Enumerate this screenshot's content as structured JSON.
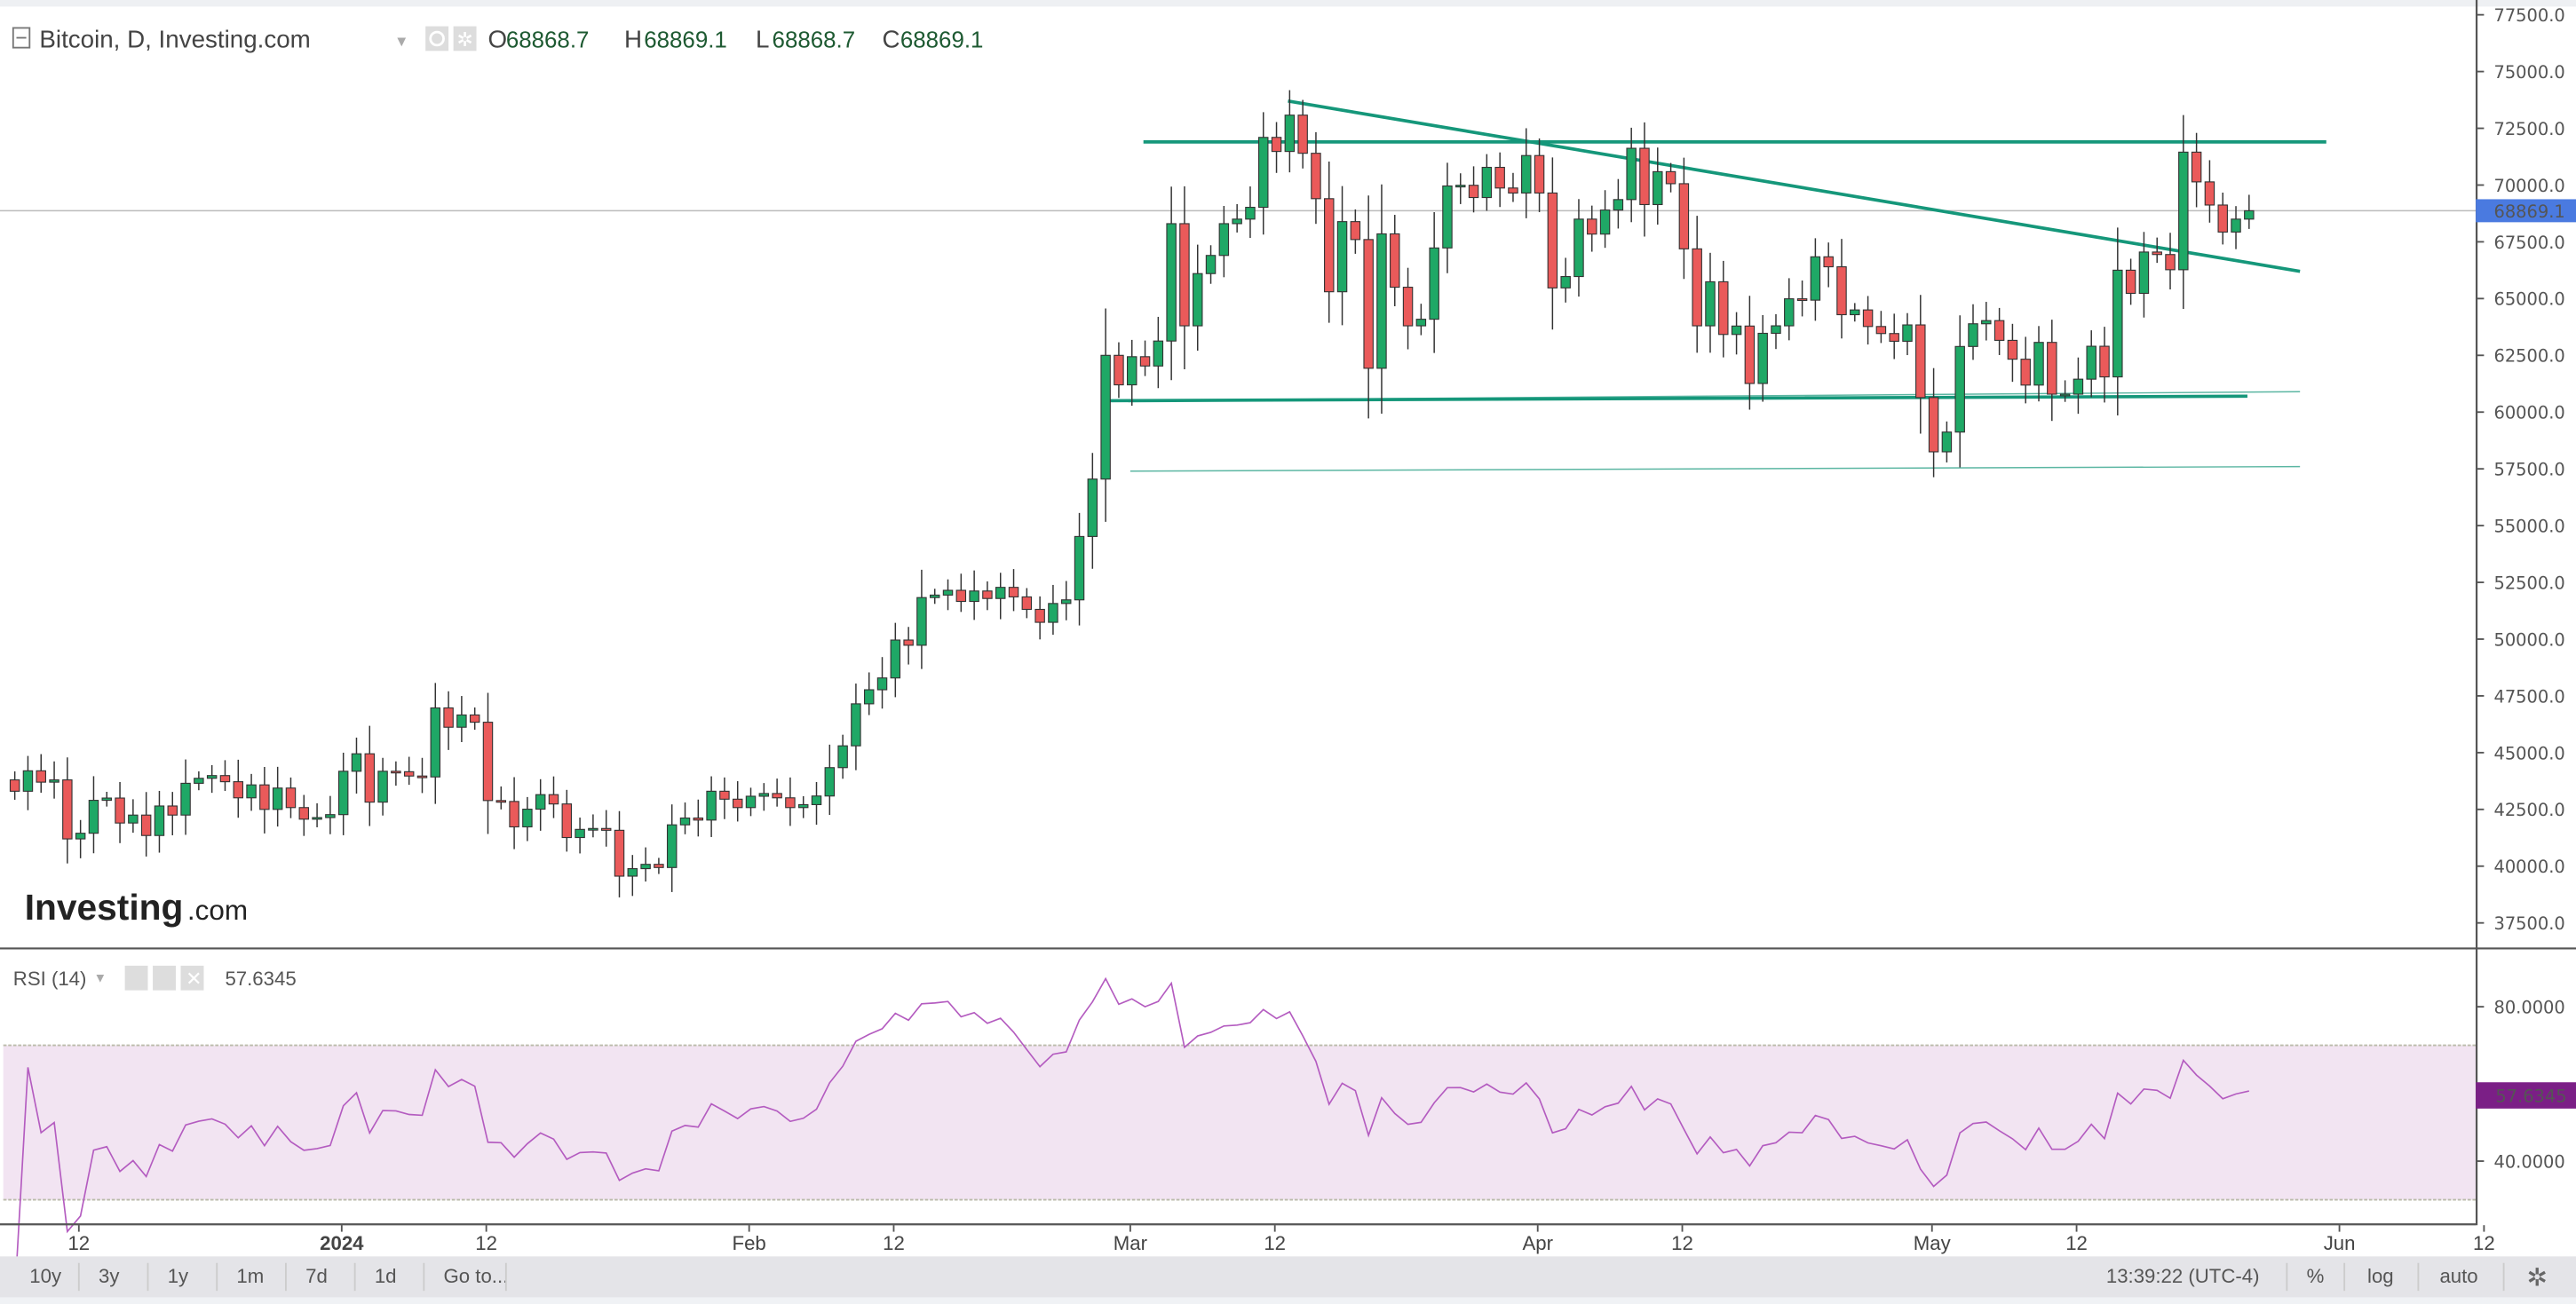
{
  "header": {
    "title": "Bitcoin, D, Investing.com",
    "o_label": "O",
    "o": "68868.7",
    "h_label": "H",
    "h": "68869.1",
    "l_label": "L",
    "l": "68868.7",
    "c_label": "C",
    "c": "68869.1"
  },
  "rsi": {
    "label": "RSI (14)",
    "value": "57.6345",
    "color": "#7b1f86"
  },
  "logo": {
    "text_main": "Investing",
    "text_suffix": ".com"
  },
  "toolbar": {
    "ranges": [
      "10y",
      "3y",
      "1y",
      "1m",
      "7d",
      "1d",
      "Go to..."
    ],
    "time": "13:39:22 (UTC-4)",
    "percent": "%",
    "log": "log",
    "auto": "auto"
  },
  "colors": {
    "up": "#1fa866",
    "down": "#ea5a5a",
    "trend": "#15977a",
    "price_tag": "#4a7ae0",
    "rsi_band": "#f2e4f2"
  },
  "chart_data": {
    "type": "candlestick",
    "title": "Bitcoin, D, Investing.com",
    "first_date": "2023-12-07",
    "first_open": 43800,
    "closes": [
      43300,
      44200,
      43700,
      43800,
      41200,
      41450,
      42900,
      43000,
      41900,
      42250,
      41350,
      42650,
      42250,
      43650,
      43870,
      43990,
      43720,
      43010,
      43580,
      42500,
      43440,
      42580,
      42070,
      42140,
      42270,
      44180,
      44950,
      42820,
      44180,
      44160,
      43970,
      43930,
      46970,
      46120,
      46660,
      46340,
      42890,
      42850,
      41730,
      42510,
      43150,
      42740,
      41260,
      41620,
      41660,
      41580,
      39560,
      39890,
      40080,
      39940,
      41820,
      42120,
      42030,
      43300,
      42950,
      42580,
      43080,
      43200,
      43010,
      42580,
      42710,
      43090,
      44340,
      45300,
      47150,
      47770,
      48290,
      49960,
      49730,
      51830,
      51940,
      52150,
      51660,
      52120,
      51790,
      52280,
      51860,
      51310,
      50740,
      51570,
      51730,
      54520,
      57050,
      62500,
      61200,
      62440,
      62030,
      63130,
      68300,
      63800,
      66100,
      66900,
      68300,
      68500,
      69020,
      72100,
      71480,
      73080,
      71400,
      69400,
      65300,
      68390,
      67600,
      61930,
      67850,
      65500,
      63800,
      64090,
      67230,
      69960,
      69990,
      69450,
      70780,
      69870,
      69650,
      71300,
      69650,
      65470,
      65970,
      68500,
      67840,
      68900,
      69360,
      71620,
      69140,
      70590,
      70060,
      67190,
      63800,
      65740,
      63420,
      63790,
      61260,
      63470,
      63800,
      64990,
      64930,
      66840,
      66400,
      64290,
      64500,
      63770,
      63460,
      63120,
      63840,
      60640,
      58250,
      59120,
      62890,
      63890,
      64030,
      63160,
      62330,
      61190,
      63070,
      60790,
      60790,
      61450,
      62900,
      61550,
      66250,
      65230,
      67050,
      66940,
      66270,
      71450,
      70140,
      69120,
      67930,
      68500,
      68869.1
    ],
    "last_price": "68869.1",
    "y_ticks": [
      "77500.0",
      "75000.0",
      "72500.0",
      "70000.0",
      "67500.0",
      "65000.0",
      "62500.0",
      "60000.0",
      "57500.0",
      "55000.0",
      "52500.0",
      "50000.0",
      "47500.0",
      "45000.0",
      "42500.0",
      "40000.0",
      "37500.0"
    ],
    "y_range": [
      37500,
      77500
    ],
    "x_ticks": [
      "12",
      "2024",
      "12",
      "Feb",
      "12",
      "Mar",
      "12",
      "Apr",
      "12",
      "May",
      "12",
      "Jun",
      "12"
    ],
    "x_tick_dates": [
      "2023-12-12",
      "2024-01-01",
      "2024-01-12",
      "2024-02-01",
      "2024-02-12",
      "2024-03-01",
      "2024-03-12",
      "2024-04-01",
      "2024-04-12",
      "2024-05-01",
      "2024-05-12",
      "2024-06-01",
      "2024-06-12"
    ],
    "rsi_period": 14,
    "rsi_ticks": [
      "80.0000",
      "40.0000"
    ],
    "rsi_band": [
      30,
      70
    ],
    "trendlines": [
      {
        "name": "resistance",
        "from": [
          "2024-03-02",
          71900
        ],
        "to": [
          "2024-05-31",
          71900
        ]
      },
      {
        "name": "descending",
        "from": [
          "2024-03-13",
          73700
        ],
        "to": [
          "2024-05-29",
          66200
        ]
      },
      {
        "name": "support",
        "from": [
          "2024-02-28",
          60500
        ],
        "to": [
          "2024-05-25",
          60700
        ]
      },
      {
        "name": "support-thin",
        "from": [
          "2024-02-28",
          60500
        ],
        "to": [
          "2024-05-29",
          60900
        ]
      },
      {
        "name": "lower-support",
        "from": [
          "2024-03-01",
          57400
        ],
        "to": [
          "2024-05-29",
          57600
        ]
      }
    ]
  }
}
